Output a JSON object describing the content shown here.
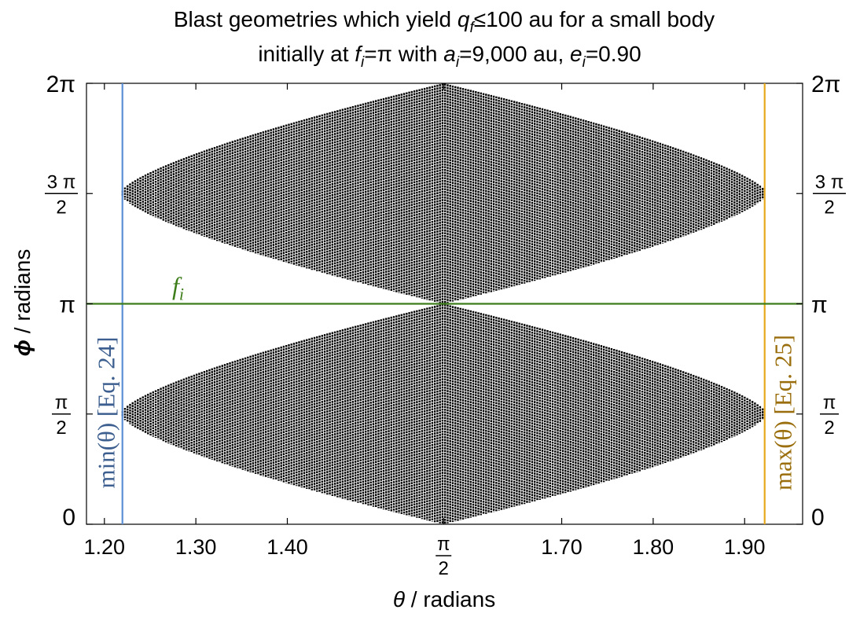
{
  "chart_data": {
    "type": "scatter",
    "title": {
      "line1_prefix": "Blast geometries which yield ",
      "line1_q": "q",
      "line1_q_sub": "f",
      "line1_suffix": "≤100 au for a small body",
      "line2_a": "initially at ",
      "line2_f": "f",
      "line2_f_sub": "i",
      "line2_b": "=π with ",
      "line2_av": "a",
      "line2_av_sub": "i",
      "line2_c": "=9,000 au, ",
      "line2_e": "e",
      "line2_e_sub": "i",
      "line2_d": "=0.90"
    },
    "xlabel": {
      "symbol": "θ",
      "text": " / radians"
    },
    "ylabel": {
      "symbol": "ϕ",
      "text": " / radians"
    },
    "xlim": [
      1.1804,
      1.9634
    ],
    "ylim": [
      0,
      6.2832
    ],
    "x_ticks": [
      {
        "value": 1.2,
        "label": "1.20"
      },
      {
        "value": 1.3,
        "label": "1.30"
      },
      {
        "value": 1.4,
        "label": "1.40"
      },
      {
        "value": 1.5708,
        "label": "π",
        "denominator": "2"
      },
      {
        "value": 1.7,
        "label": "1.70"
      },
      {
        "value": 1.8,
        "label": "1.80"
      },
      {
        "value": 1.9,
        "label": "1.90"
      }
    ],
    "y_ticks": [
      {
        "value": 0,
        "label": "0"
      },
      {
        "value": 1.5708,
        "label": "π",
        "denominator": "2"
      },
      {
        "value": 3.1416,
        "label": "π"
      },
      {
        "value": 4.7124,
        "label": "3 π",
        "denominator": "2"
      },
      {
        "value": 6.2832,
        "label": "2π"
      }
    ],
    "grid": false,
    "reference_lines": [
      {
        "orientation": "vertical",
        "x": 1.2197,
        "color": "#5b8fd6",
        "label": "min(θ) [Eq. 24]",
        "label_color": "#3d5f8f"
      },
      {
        "orientation": "vertical",
        "x": 1.9219,
        "color": "#e8a81c",
        "label": "max(θ) [Eq. 25]",
        "label_color": "#9a6e0c"
      },
      {
        "orientation": "horizontal",
        "y": 3.1416,
        "color": "#3d7d1a",
        "label_main": "f",
        "label_sub": "i",
        "label_color": "#3d7d1a"
      }
    ],
    "regions": {
      "theta_min": 1.2197,
      "theta_max": 1.9219,
      "theta_peak": 1.5708,
      "lower_lobe": {
        "center": 1.5708,
        "half_width_at_center": 1.5708,
        "half_width_at_edge": 0.04
      },
      "upper_lobe": {
        "center": 4.7124,
        "half_width_at_center": 1.5708,
        "half_width_at_edge": 0.04
      },
      "point_color": "#000000",
      "column_spacing": 0.0028
    }
  }
}
